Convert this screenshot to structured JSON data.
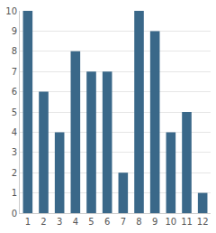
{
  "chart_data": {
    "type": "bar",
    "categories": [
      "1",
      "2",
      "3",
      "4",
      "5",
      "6",
      "7",
      "8",
      "9",
      "10",
      "11",
      "12"
    ],
    "values": [
      10,
      6,
      4,
      8,
      7,
      7,
      2,
      10,
      9,
      4,
      5,
      1
    ],
    "color": "#3a6889",
    "ylim": [
      0,
      10
    ],
    "yticks": [
      0,
      1,
      2,
      3,
      4,
      5,
      6,
      7,
      8,
      9,
      10
    ],
    "grid": true
  }
}
